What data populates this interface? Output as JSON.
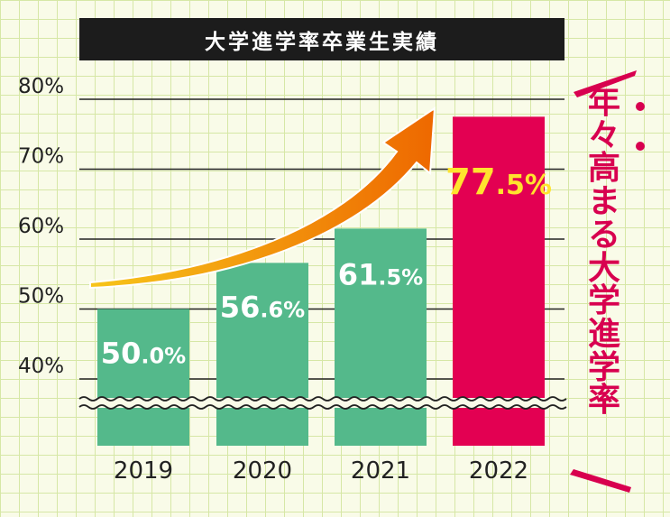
{
  "title": "大学進学率卒業生実績",
  "side_caption": "年々高まる大学進学率",
  "colors": {
    "green_bar": "#54b98b",
    "highlight_bar": "#e30052",
    "highlight_label": "#ffe32e",
    "accent_text": "#d8004f",
    "arrow_start": "#f7c51a",
    "arrow_end": "#ee6800"
  },
  "chart_data": {
    "type": "bar",
    "title": "大学進学率卒業生実績",
    "categories": [
      "2019",
      "2020",
      "2021",
      "2022"
    ],
    "values": [
      50.0,
      56.6,
      61.5,
      77.5
    ],
    "value_labels": [
      {
        "main": "50.0",
        "unit": "%"
      },
      {
        "main": "56.6",
        "unit": "%"
      },
      {
        "main": "61.5",
        "unit": "%"
      },
      {
        "main": "77.5",
        "unit": "%"
      }
    ],
    "y_ticks": [
      {
        "value": 40,
        "label": "40%"
      },
      {
        "value": 50,
        "label": "50%"
      },
      {
        "value": 60,
        "label": "60%"
      },
      {
        "value": 70,
        "label": "70%"
      },
      {
        "value": 80,
        "label": "80%"
      }
    ],
    "ylim": [
      40,
      80
    ],
    "axis_break": true,
    "grid": true,
    "highlight_index": 3,
    "trend_arrow": "up-right"
  }
}
